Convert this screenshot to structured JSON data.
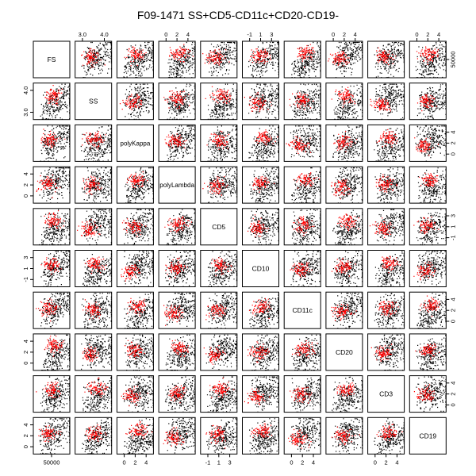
{
  "chart_data": {
    "type": "scatter",
    "subtype": "scatterplot-matrix",
    "title": "F09-1471 SS+CD5-CD11c+CD20-CD19-",
    "colors": {
      "background_events": "#000000",
      "gated_events": "#ff0000",
      "panel_border": "#000000"
    },
    "variables": [
      {
        "name": "FS",
        "ticks": [
          "50000"
        ]
      },
      {
        "name": "SS",
        "ticks": [
          "3.0",
          "4.0"
        ]
      },
      {
        "name": "polyKappa",
        "ticks": [
          "0",
          "2",
          "4"
        ]
      },
      {
        "name": "polyLambda",
        "ticks": [
          "0",
          "2",
          "4"
        ]
      },
      {
        "name": "CD5",
        "ticks": [
          "-1",
          "1",
          "3"
        ]
      },
      {
        "name": "CD10",
        "ticks": [
          "-1",
          "1",
          "3"
        ]
      },
      {
        "name": "CD11c",
        "ticks": [
          "0",
          "2",
          "4"
        ]
      },
      {
        "name": "CD20",
        "ticks": [
          "0",
          "2",
          "4"
        ]
      },
      {
        "name": "CD3",
        "ticks": [
          "0",
          "2",
          "4"
        ]
      },
      {
        "name": "CD19",
        "ticks": [
          "0",
          "2",
          "4"
        ]
      }
    ],
    "axis_labels": {
      "top": [
        {
          "col": 1,
          "ticks": [
            "3.0",
            "4.0"
          ]
        },
        {
          "col": 3,
          "ticks": [
            "0",
            "2",
            "4"
          ]
        },
        {
          "col": 5,
          "ticks": [
            "-1",
            "1",
            "3"
          ]
        },
        {
          "col": 7,
          "ticks": [
            "0",
            "2",
            "4"
          ]
        },
        {
          "col": 9,
          "ticks": [
            "0",
            "2",
            "4"
          ]
        }
      ],
      "bottom": [
        {
          "col": 0,
          "ticks": [
            "50000"
          ]
        },
        {
          "col": 2,
          "ticks": [
            "0",
            "2",
            "4"
          ]
        },
        {
          "col": 4,
          "ticks": [
            "-1",
            "1",
            "3"
          ]
        },
        {
          "col": 6,
          "ticks": [
            "0",
            "2",
            "4"
          ]
        },
        {
          "col": 8,
          "ticks": [
            "0",
            "2",
            "4"
          ]
        }
      ],
      "left": [
        {
          "row": 1,
          "ticks": [
            "3.0",
            "4.0"
          ]
        },
        {
          "row": 3,
          "ticks": [
            "0",
            "2",
            "4"
          ]
        },
        {
          "row": 5,
          "ticks": [
            "-1",
            "1",
            "3"
          ]
        },
        {
          "row": 7,
          "ticks": [
            "0",
            "2",
            "4"
          ]
        },
        {
          "row": 9,
          "ticks": [
            "0",
            "2",
            "4"
          ]
        }
      ],
      "right": [
        {
          "row": 0,
          "ticks": [
            "50000"
          ]
        },
        {
          "row": 2,
          "ticks": [
            "0",
            "2",
            "4"
          ]
        },
        {
          "row": 4,
          "ticks": [
            "-1",
            "1",
            "3"
          ]
        },
        {
          "row": 6,
          "ticks": [
            "0",
            "2",
            "4"
          ]
        },
        {
          "row": 8,
          "ticks": [
            "0",
            "2",
            "4"
          ]
        }
      ]
    },
    "grid": false,
    "legend": "none"
  }
}
